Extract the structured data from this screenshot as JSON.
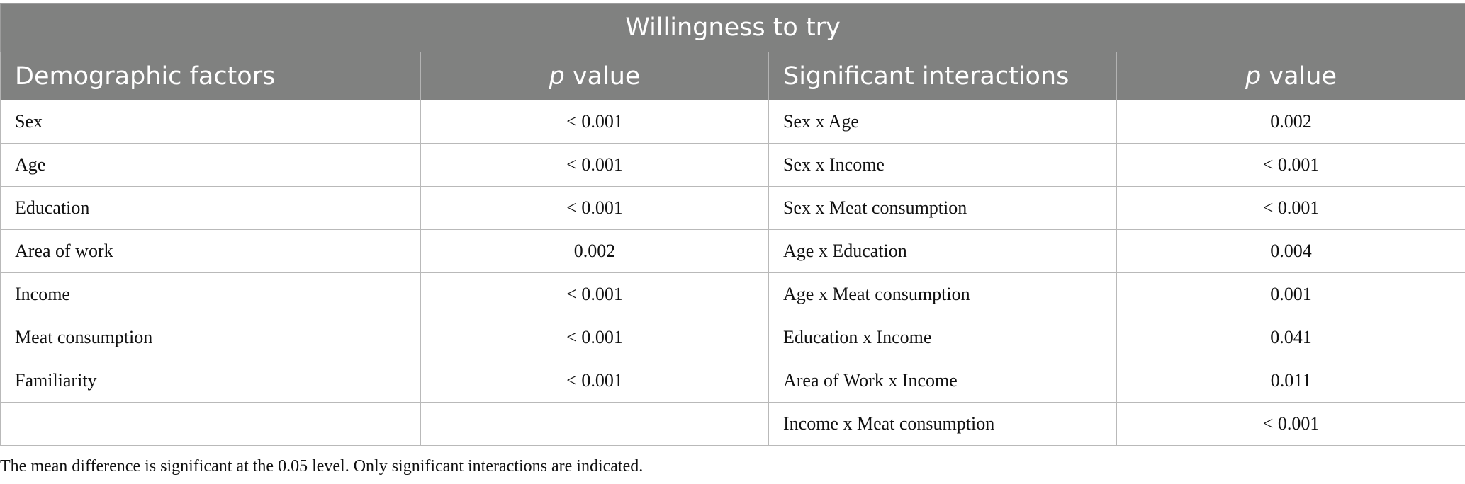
{
  "table": {
    "title": "Willingness to try",
    "columns": {
      "demographic_factors": "Demographic factors",
      "p_label_italic": "p",
      "p_label_rest": " value",
      "significant_interactions": "Significant interactions"
    },
    "rows": [
      {
        "factor": "Sex",
        "factor_p": "< 0.001",
        "interaction": "Sex x Age",
        "interaction_p": "0.002"
      },
      {
        "factor": "Age",
        "factor_p": "< 0.001",
        "interaction": "Sex x Income",
        "interaction_p": "< 0.001"
      },
      {
        "factor": "Education",
        "factor_p": "< 0.001",
        "interaction": "Sex x Meat consumption",
        "interaction_p": "< 0.001"
      },
      {
        "factor": "Area of work",
        "factor_p": "0.002",
        "interaction": "Age x Education",
        "interaction_p": "0.004"
      },
      {
        "factor": "Income",
        "factor_p": "< 0.001",
        "interaction": "Age x Meat consumption",
        "interaction_p": "0.001"
      },
      {
        "factor": "Meat consumption",
        "factor_p": "< 0.001",
        "interaction": "Education x Income",
        "interaction_p": "0.041"
      },
      {
        "factor": "Familiarity",
        "factor_p": "< 0.001",
        "interaction": "Area of Work x Income",
        "interaction_p": "0.011"
      },
      {
        "factor": "",
        "factor_p": "",
        "interaction": "Income x Meat consumption",
        "interaction_p": "< 0.001"
      }
    ]
  },
  "footnote": "The mean difference is significant at the 0.05 level. Only significant interactions are indicated."
}
